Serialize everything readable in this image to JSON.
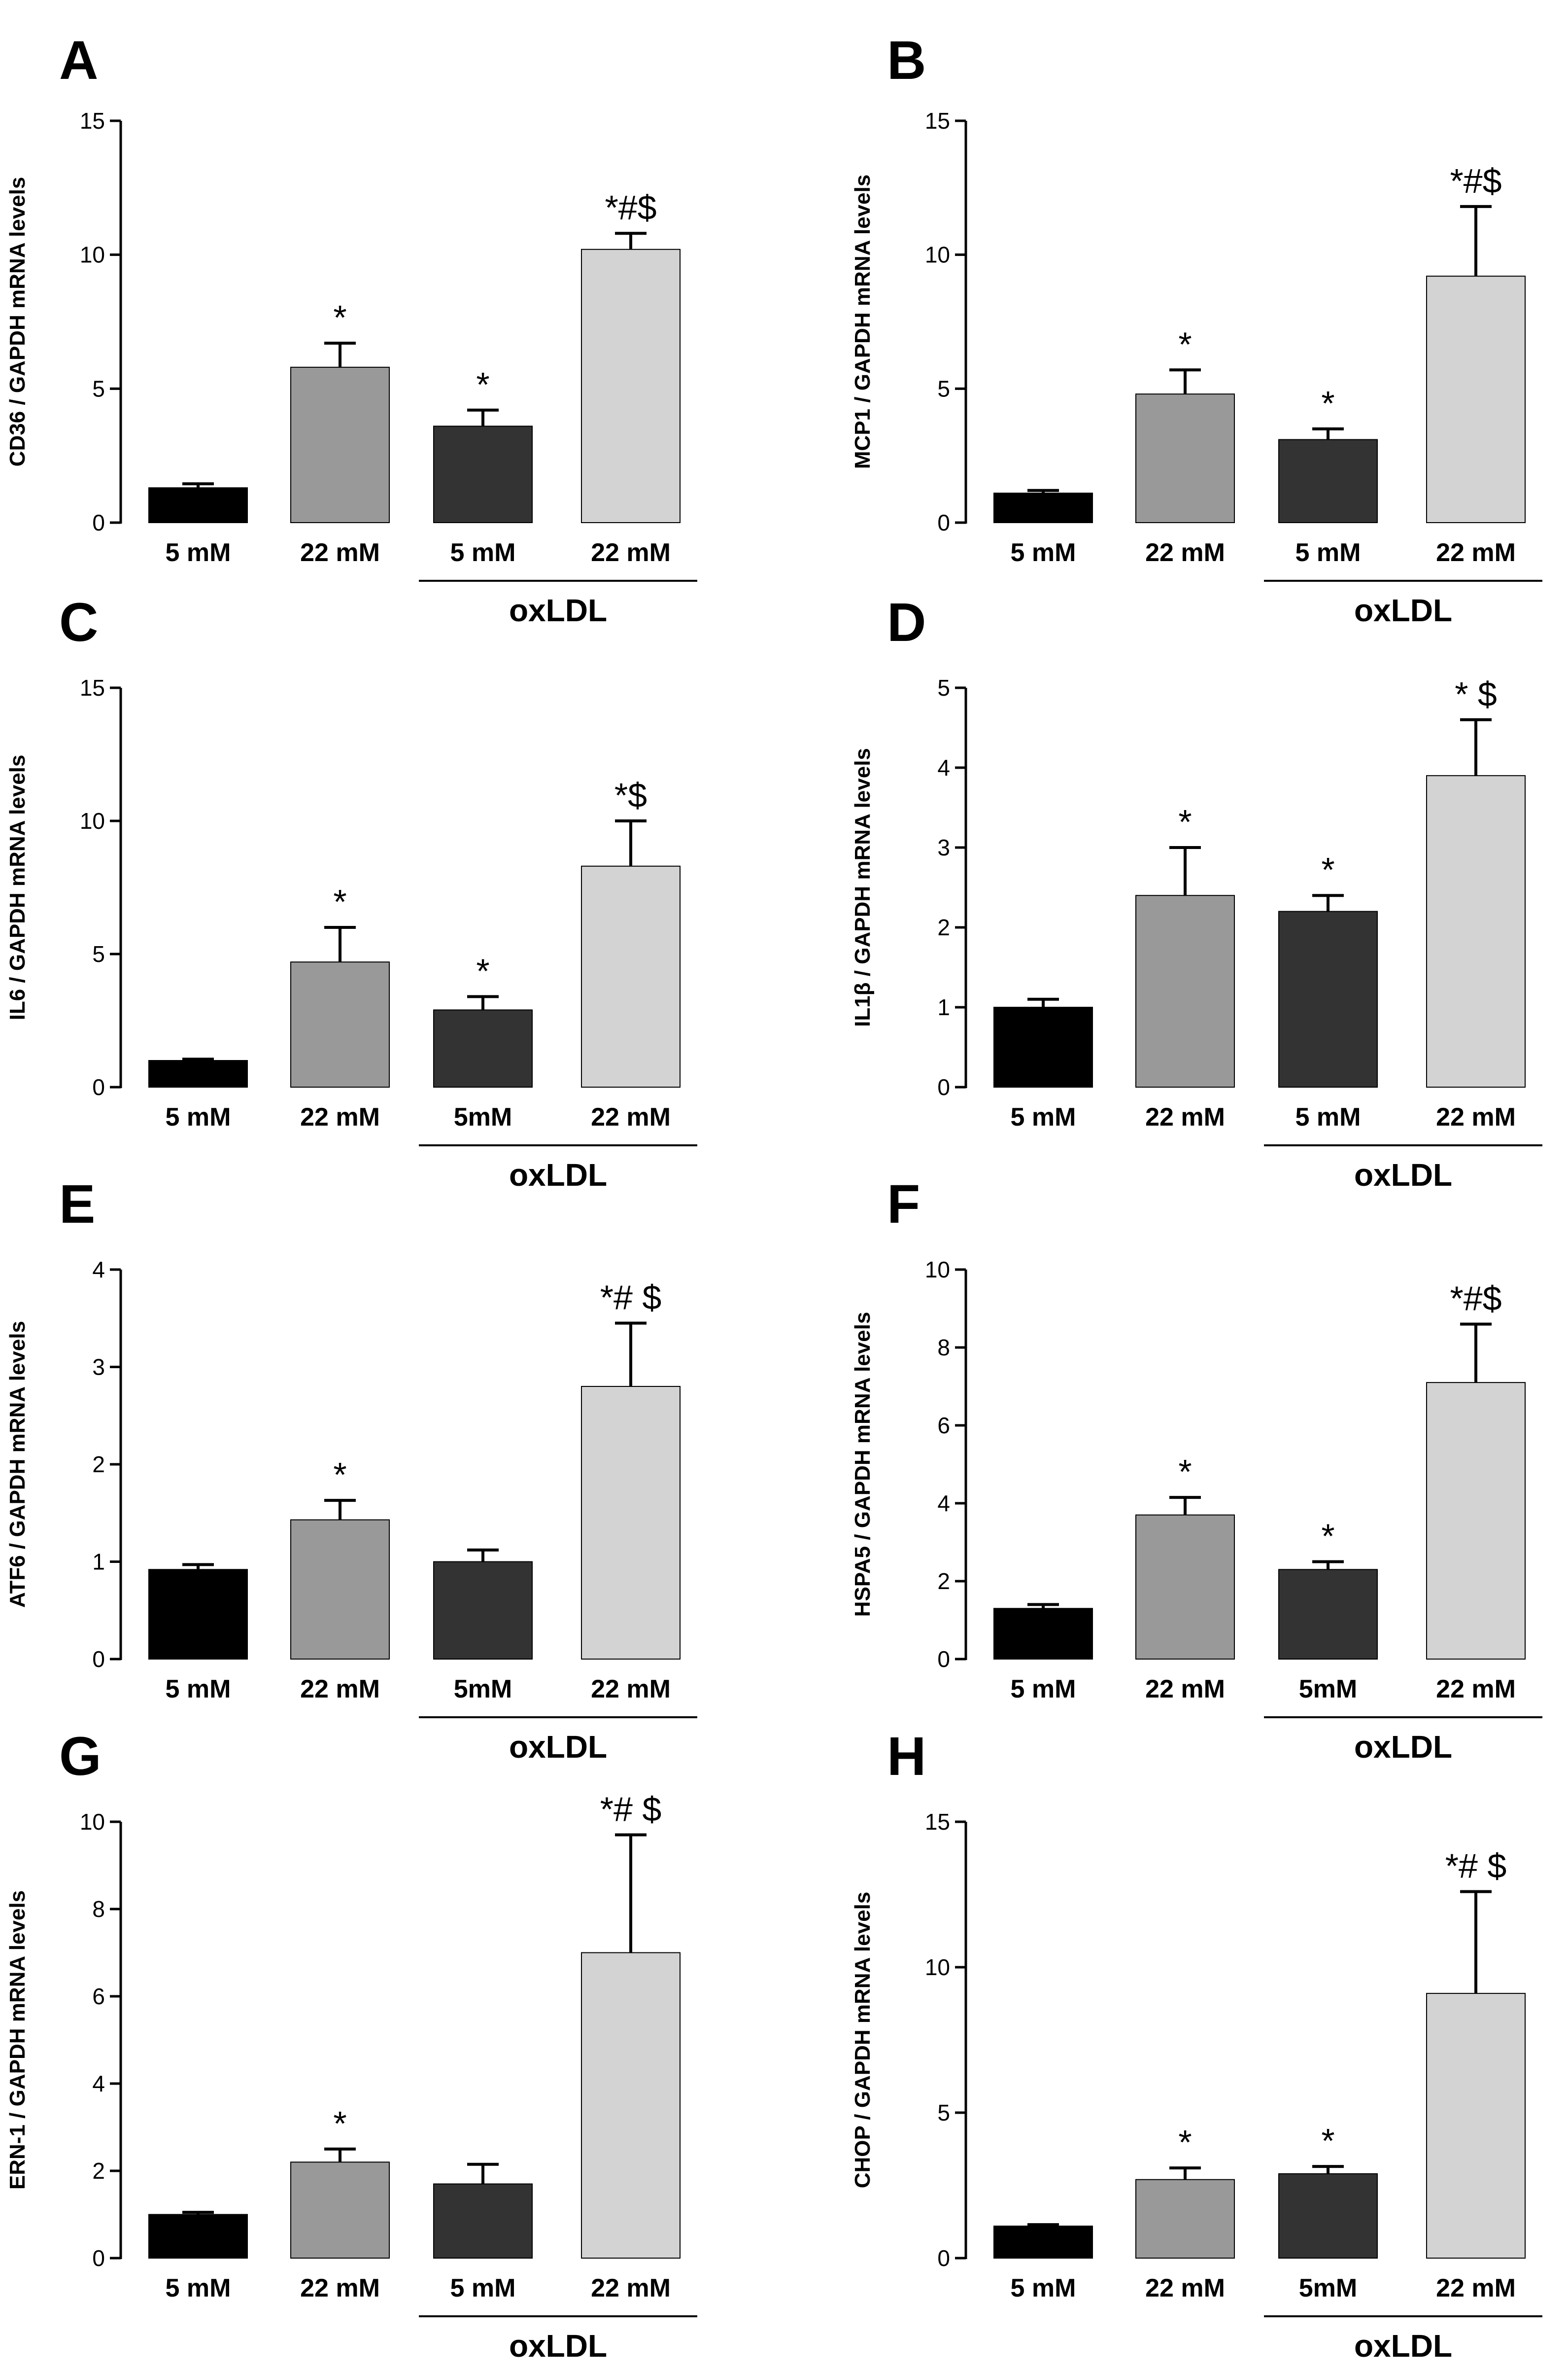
{
  "colors": [
    "#000000",
    "#999999",
    "#333333",
    "#d3d3d3"
  ],
  "chart_data": [
    {
      "type": "bar",
      "panel": "A",
      "ylabel": "CD36 / GAPDH mRNA levels",
      "ylim": [
        0,
        15
      ],
      "yticks": [
        0,
        5,
        10,
        15
      ],
      "categories": [
        "5 mM",
        "22 mM",
        "5 mM",
        "22 mM"
      ],
      "group_label": "oxLDL",
      "values": [
        1.3,
        5.8,
        3.6,
        10.2
      ],
      "errors": [
        0.15,
        0.9,
        0.6,
        0.6
      ],
      "annotations": [
        "",
        "*",
        "*",
        "*#$"
      ]
    },
    {
      "type": "bar",
      "panel": "B",
      "ylabel": "MCP1 / GAPDH mRNA levels",
      "ylim": [
        0,
        15
      ],
      "yticks": [
        0,
        5,
        10,
        15
      ],
      "categories": [
        "5 mM",
        "22 mM",
        "5 mM",
        "22 mM"
      ],
      "group_label": "oxLDL",
      "values": [
        1.1,
        4.8,
        3.1,
        9.2
      ],
      "errors": [
        0.1,
        0.9,
        0.4,
        2.6
      ],
      "annotations": [
        "",
        "*",
        "*",
        "*#$"
      ]
    },
    {
      "type": "bar",
      "panel": "C",
      "ylabel": "IL6 / GAPDH mRNA levels",
      "ylim": [
        0,
        15
      ],
      "yticks": [
        0,
        5,
        10,
        15
      ],
      "categories": [
        "5 mM",
        "22 mM",
        "5mM",
        "22 mM"
      ],
      "group_label": "oxLDL",
      "values": [
        1.0,
        4.7,
        2.9,
        8.3
      ],
      "errors": [
        0.05,
        1.3,
        0.5,
        1.7
      ],
      "annotations": [
        "",
        "*",
        "*",
        "*$"
      ]
    },
    {
      "type": "bar",
      "panel": "D",
      "ylabel": "IL1β / GAPDH mRNA levels",
      "ylim": [
        0,
        5
      ],
      "yticks": [
        0,
        1,
        2,
        3,
        4,
        5
      ],
      "categories": [
        "5 mM",
        "22 mM",
        "5 mM",
        "22 mM"
      ],
      "group_label": "oxLDL",
      "values": [
        1.0,
        2.4,
        2.2,
        3.9
      ],
      "errors": [
        0.1,
        0.6,
        0.2,
        0.7
      ],
      "annotations": [
        "",
        "*",
        "*",
        "* $"
      ]
    },
    {
      "type": "bar",
      "panel": "E",
      "ylabel": "ATF6 / GAPDH mRNA levels",
      "ylim": [
        0,
        4
      ],
      "yticks": [
        0,
        1,
        2,
        3,
        4
      ],
      "categories": [
        "5 mM",
        "22 mM",
        "5mM",
        "22 mM"
      ],
      "group_label": "oxLDL",
      "values": [
        0.92,
        1.43,
        1.0,
        2.8
      ],
      "errors": [
        0.05,
        0.2,
        0.12,
        0.65
      ],
      "annotations": [
        "",
        "*",
        "",
        "*# $"
      ]
    },
    {
      "type": "bar",
      "panel": "F",
      "ylabel": "HSPA5 / GAPDH mRNA levels",
      "ylim": [
        0,
        10
      ],
      "yticks": [
        0,
        2,
        4,
        6,
        8,
        10
      ],
      "categories": [
        "5 mM",
        "22 mM",
        "5mM",
        "22 mM"
      ],
      "group_label": "oxLDL",
      "values": [
        1.3,
        3.7,
        2.3,
        7.1
      ],
      "errors": [
        0.1,
        0.45,
        0.2,
        1.5
      ],
      "annotations": [
        "",
        "*",
        "*",
        "*#$"
      ]
    },
    {
      "type": "bar",
      "panel": "G",
      "ylabel": "ERN-1 / GAPDH mRNA levels",
      "ylim": [
        0,
        10
      ],
      "yticks": [
        0,
        2,
        4,
        6,
        8,
        10
      ],
      "categories": [
        "5 mM",
        "22 mM",
        "5 mM",
        "22 mM"
      ],
      "group_label": "oxLDL",
      "values": [
        1.0,
        2.2,
        1.7,
        7.0
      ],
      "errors": [
        0.05,
        0.3,
        0.45,
        2.7
      ],
      "annotations": [
        "",
        "*",
        "",
        "*# $"
      ]
    },
    {
      "type": "bar",
      "panel": "H",
      "ylabel": "CHOP / GAPDH mRNA levels",
      "ylim": [
        0,
        15
      ],
      "yticks": [
        0,
        5,
        10,
        15
      ],
      "categories": [
        "5 mM",
        "22 mM",
        "5mM",
        "22 mM"
      ],
      "group_label": "oxLDL",
      "values": [
        1.1,
        2.7,
        2.9,
        9.1
      ],
      "errors": [
        0.05,
        0.4,
        0.25,
        3.5
      ],
      "annotations": [
        "",
        "*",
        "*",
        "*# $"
      ]
    }
  ]
}
